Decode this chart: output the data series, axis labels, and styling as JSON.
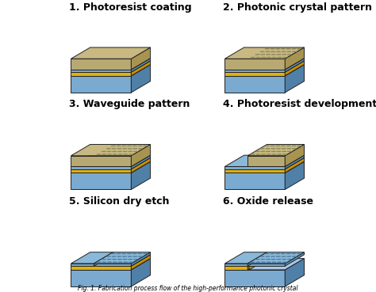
{
  "background_color": "#ffffff",
  "steps": [
    "1. Photoresist coating",
    "2. Photonic crystal pattern",
    "3. Waveguide pattern",
    "4. Photoresist development",
    "5. Silicon dry etch",
    "6. Oxide release"
  ],
  "colors": {
    "resist_top": "#c8b882",
    "resist_side": "#a89450",
    "resist_front": "#b8a872",
    "silicon_top": "#8ab8d8",
    "silicon_side": "#5a90b8",
    "silicon_front": "#7aaace",
    "oxide_top": "#f0c820",
    "oxide_side": "#c89000",
    "oxide_front": "#e0b010",
    "substrate_top": "#a8c8e8",
    "substrate_side": "#5080a8",
    "substrate_front": "#7aaad0",
    "hole_dark": "#888858",
    "hole_light": "#d8c898",
    "hole_si_dark": "#4878a0",
    "hole_si_light": "#c0d8f0",
    "text_color": "#000000",
    "edge_color": "#222222"
  },
  "label_fontsize": 9.0,
  "caption": "Fig. 1. Fabrication process flow of the high-performance photonic crystal"
}
